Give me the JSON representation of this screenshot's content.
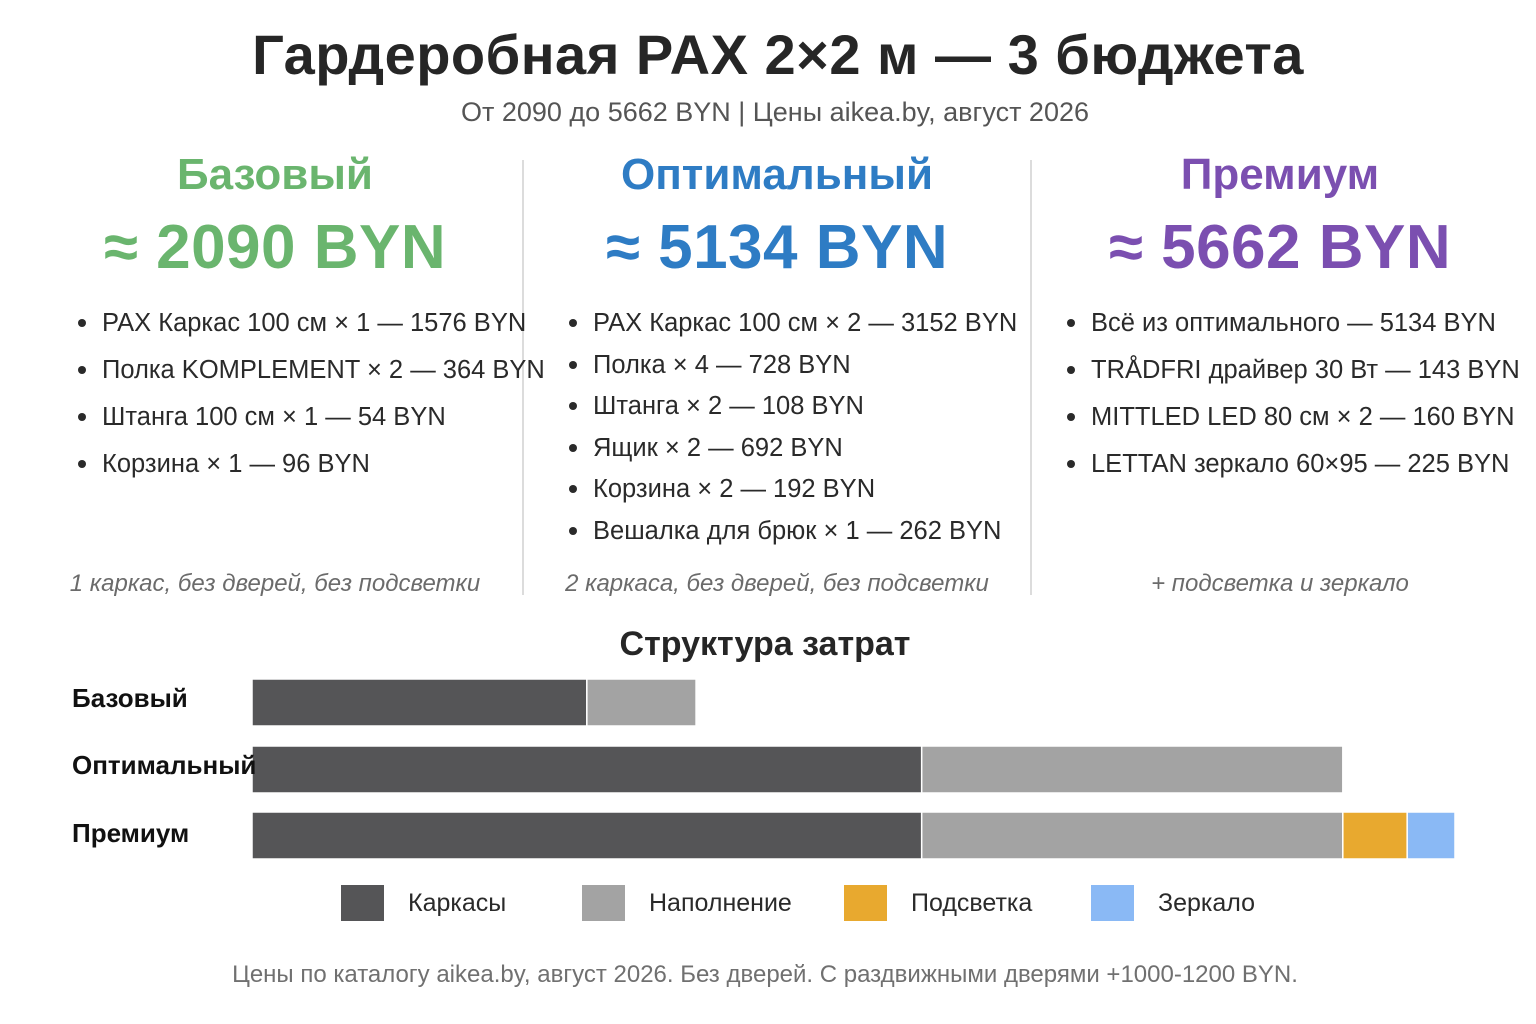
{
  "header": {
    "title": "Гардеробная PAX 2×2 м — 3 бюджета",
    "subtitle": "От 2090 до 5662 BYN | Цены aikea.by, август 2026"
  },
  "tiers": [
    {
      "name": "Базовый",
      "price": "≈ 2090 BYN",
      "color": "#6ab56e",
      "items": [
        "PAX Каркас 100 см × 1 — 1576 BYN",
        "Полка KOMPLEMENT × 2 — 364 BYN",
        "Штанга 100 см × 1 — 54 BYN",
        "Корзина × 1 — 96 BYN"
      ],
      "note": "1 каркас, без дверей, без подсветки"
    },
    {
      "name": "Оптимальный",
      "price": "≈ 5134 BYN",
      "color": "#2e7cc4",
      "items": [
        "PAX Каркас 100 см × 2 — 3152 BYN",
        "Полка × 4 — 728 BYN",
        "Штанга × 2 — 108 BYN",
        "Ящик × 2 — 692 BYN",
        "Корзина × 2 — 192 BYN",
        "Вешалка для брюк × 1 — 262 BYN"
      ],
      "note": "2 каркаса, без дверей, без подсветки"
    },
    {
      "name": "Премиум",
      "price": "≈ 5662 BYN",
      "color": "#7b4fb0",
      "items": [
        "Всё из оптимального — 5134 BYN",
        "TRÅDFRI драйвер 30 Вт — 143 BYN",
        "MITTLED LED 80 см × 2 — 160 BYN",
        "LETTAN зеркало 60×95 — 225 BYN"
      ],
      "note": "+ подсветка и зеркало"
    }
  ],
  "chart_data": {
    "type": "bar",
    "orientation": "horizontal",
    "stacked": true,
    "title": "Структура затрат",
    "categories": [
      "Базовый",
      "Оптимальный",
      "Премиум"
    ],
    "series": [
      {
        "name": "Каркасы",
        "color": "#555557",
        "values": [
          1576,
          3152,
          3152
        ]
      },
      {
        "name": "Наполнение",
        "color": "#a3a3a3",
        "values": [
          514,
          1982,
          1982
        ]
      },
      {
        "name": "Подсветка",
        "color": "#e8a92f",
        "values": [
          0,
          0,
          303
        ]
      },
      {
        "name": "Зеркало",
        "color": "#8ab9f5",
        "values": [
          0,
          0,
          225
        ]
      }
    ],
    "xlim": [
      0,
      5662
    ],
    "legend_position": "bottom"
  },
  "footnote": "Цены по каталогу aikea.by, август 2026. Без дверей. С раздвижными дверями +1000-1200 BYN."
}
